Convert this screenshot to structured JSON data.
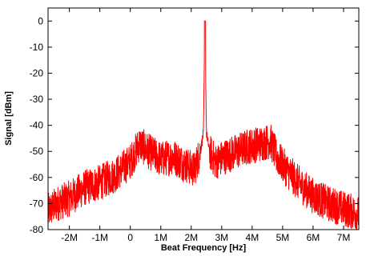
{
  "chart_data": {
    "type": "line",
    "title": "",
    "xlabel": "Beat Frequency [Hz]",
    "ylabel": "Signal [dBm]",
    "xlim": [
      -2.7,
      7.5
    ],
    "ylim": [
      -80,
      5
    ],
    "grid": false,
    "legend": "none",
    "x_tick_values": [
      -2,
      -1,
      0,
      1,
      2,
      3,
      4,
      5,
      6,
      7
    ],
    "x_tick_labels": [
      "-2M",
      "-1M",
      "0",
      "1M",
      "2M",
      "3M",
      "4M",
      "5M",
      "6M",
      "7M"
    ],
    "y_tick_values": [
      0,
      -10,
      -20,
      -30,
      -40,
      -50,
      -60,
      -70,
      -80
    ],
    "y_tick_labels": [
      "0",
      "-10",
      "-20",
      "-30",
      "-40",
      "-50",
      "-60",
      "-70",
      "-80"
    ],
    "x_unit_note": "x values in MHz",
    "series": [
      {
        "color": "#ff0000",
        "x": [
          -2.7,
          -2.4,
          -2.0,
          -1.5,
          -1.0,
          -0.5,
          0.0,
          0.3,
          0.6,
          1.0,
          1.4,
          1.8,
          2.1,
          2.3,
          2.4,
          2.45,
          2.5,
          2.6,
          2.8,
          3.1,
          3.5,
          3.9,
          4.3,
          4.6,
          4.8,
          5.2,
          5.6,
          6.0,
          6.5,
          7.0,
          7.5
        ],
        "y": [
          -73,
          -70,
          -68,
          -64,
          -62,
          -59,
          -54,
          -47,
          -50,
          -53,
          -52,
          -55,
          -57,
          -50,
          -43,
          0,
          -43,
          -50,
          -54,
          -52,
          -50,
          -48,
          -47,
          -46,
          -52,
          -58,
          -63,
          -67,
          -70,
          -72,
          -74
        ]
      }
    ]
  }
}
